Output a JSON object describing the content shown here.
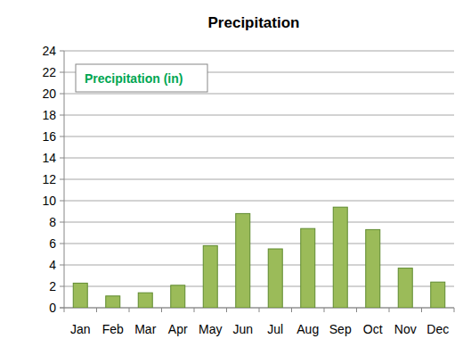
{
  "chart_data": {
    "type": "bar",
    "title": "Precipitation",
    "categories": [
      "Jan",
      "Feb",
      "Mar",
      "Apr",
      "May",
      "Jun",
      "Jul",
      "Aug",
      "Sep",
      "Oct",
      "Nov",
      "Dec"
    ],
    "series": [
      {
        "name": "Precipitation (in)",
        "color": "#9bbb59",
        "values": [
          2.3,
          1.1,
          1.4,
          2.1,
          5.8,
          8.8,
          5.5,
          7.4,
          9.4,
          7.3,
          3.7,
          2.4
        ]
      }
    ],
    "ylim": [
      0,
      24
    ],
    "yticks": [
      0,
      2,
      4,
      6,
      8,
      10,
      12,
      14,
      16,
      18,
      20,
      22,
      24
    ],
    "grid": true,
    "legend": "upper left"
  }
}
